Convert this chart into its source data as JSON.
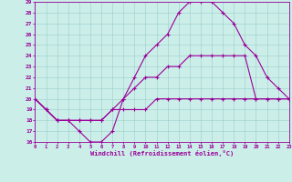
{
  "xlabel": "Windchill (Refroidissement éolien,°C)",
  "xlim": [
    0,
    23
  ],
  "ylim": [
    16,
    29
  ],
  "xticks": [
    0,
    1,
    2,
    3,
    4,
    5,
    6,
    7,
    8,
    9,
    10,
    11,
    12,
    13,
    14,
    15,
    16,
    17,
    18,
    19,
    20,
    21,
    22,
    23
  ],
  "yticks": [
    16,
    17,
    18,
    19,
    20,
    21,
    22,
    23,
    24,
    25,
    26,
    27,
    28,
    29
  ],
  "bg_color": "#cceee8",
  "line_color": "#990099",
  "grid_color": "#99cccc",
  "lines": [
    {
      "x": [
        0,
        1,
        2,
        3,
        4,
        5,
        6,
        7,
        8,
        9,
        10,
        11,
        12,
        13,
        14,
        15,
        16,
        17,
        18,
        19,
        20,
        21,
        22,
        23
      ],
      "y": [
        20,
        19,
        18,
        18,
        17,
        16,
        16,
        17,
        20,
        22,
        24,
        25,
        26,
        28,
        29,
        29,
        29,
        28,
        27,
        25,
        24,
        22,
        21,
        20
      ]
    },
    {
      "x": [
        0,
        1,
        2,
        3,
        4,
        5,
        6,
        7,
        8,
        9,
        10,
        11,
        12,
        13,
        14,
        15,
        16,
        17,
        18,
        19,
        20,
        21,
        22,
        23
      ],
      "y": [
        20,
        19,
        18,
        18,
        18,
        18,
        18,
        19,
        20,
        21,
        22,
        22,
        23,
        23,
        24,
        24,
        24,
        24,
        24,
        24,
        20,
        20,
        20,
        20
      ]
    },
    {
      "x": [
        0,
        1,
        2,
        3,
        4,
        5,
        6,
        7,
        8,
        9,
        10,
        11,
        12,
        13,
        14,
        15,
        16,
        17,
        18,
        19,
        20,
        21,
        22,
        23
      ],
      "y": [
        20,
        19,
        18,
        18,
        18,
        18,
        18,
        19,
        19,
        19,
        19,
        20,
        20,
        20,
        20,
        20,
        20,
        20,
        20,
        20,
        20,
        20,
        20,
        20
      ]
    }
  ],
  "linewidth": 0.8,
  "markersize": 3.0
}
